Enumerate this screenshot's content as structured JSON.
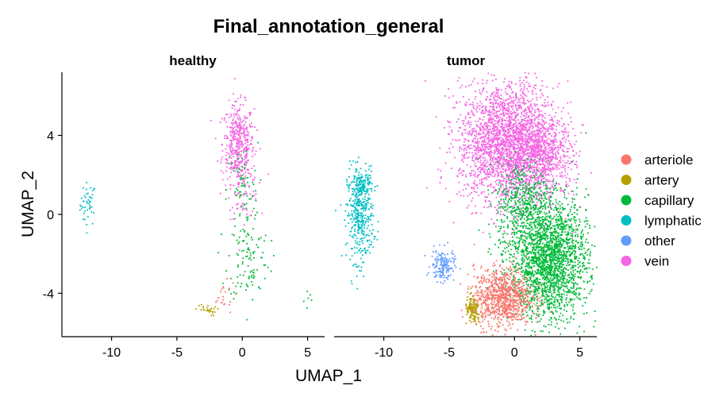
{
  "chart_data": {
    "type": "scatter",
    "title": "Final_annotation_general",
    "xlabel": "UMAP_1",
    "ylabel": "UMAP_2",
    "xlim": [
      -13.8,
      6.3
    ],
    "ylim": [
      -6.2,
      7.2
    ],
    "x_ticks": [
      -10,
      -5,
      0,
      5
    ],
    "y_ticks": [
      4,
      0,
      -4
    ],
    "grid": false,
    "legend_position": "right",
    "colors": {
      "arteriole": "#F8766D",
      "artery": "#B79F00",
      "capillary": "#00BA38",
      "lymphatic": "#00BFC4",
      "other": "#619CFF",
      "vein": "#F564E3"
    },
    "legend": [
      "arteriole",
      "artery",
      "capillary",
      "lymphatic",
      "other",
      "vein"
    ],
    "panels": [
      {
        "name": "healthy",
        "clusters": [
          {
            "label": "lymphatic",
            "cx": -11.8,
            "cy": 0.5,
            "sx": 0.3,
            "sy": 0.55,
            "n": 45
          },
          {
            "label": "vein",
            "cx": -0.3,
            "cy": 3.6,
            "sx": 0.6,
            "sy": 1.0,
            "n": 420
          },
          {
            "label": "vein",
            "cx": 0.1,
            "cy": 1.4,
            "sx": 0.6,
            "sy": 0.8,
            "n": 90
          },
          {
            "label": "capillary",
            "cx": 0.0,
            "cy": 1.2,
            "sx": 0.6,
            "sy": 1.2,
            "n": 70
          },
          {
            "label": "capillary",
            "cx": 0.5,
            "cy": -2.2,
            "sx": 0.8,
            "sy": 1.1,
            "n": 110
          },
          {
            "label": "capillary",
            "cx": 4.8,
            "cy": -4.3,
            "sx": 0.4,
            "sy": 0.4,
            "n": 6
          },
          {
            "label": "arteriole",
            "cx": -1.5,
            "cy": -4.2,
            "sx": 0.5,
            "sy": 0.4,
            "n": 22
          },
          {
            "label": "artery",
            "cx": -2.8,
            "cy": -4.85,
            "sx": 0.4,
            "sy": 0.15,
            "n": 26
          }
        ]
      },
      {
        "name": "tumor",
        "clusters": [
          {
            "label": "lymphatic",
            "cx": -11.8,
            "cy": 0.0,
            "sx": 0.5,
            "sy": 1.2,
            "n": 420
          },
          {
            "label": "lymphatic",
            "cx": -11.6,
            "cy": 1.5,
            "sx": 0.4,
            "sy": 0.3,
            "n": 80
          },
          {
            "label": "other",
            "cx": -5.5,
            "cy": -2.6,
            "sx": 0.45,
            "sy": 0.4,
            "n": 160
          },
          {
            "label": "vein",
            "cx": -0.4,
            "cy": 3.6,
            "sx": 1.9,
            "sy": 1.5,
            "n": 2600
          },
          {
            "label": "vein",
            "cx": 2.2,
            "cy": 2.8,
            "sx": 1.2,
            "sy": 1.0,
            "n": 500
          },
          {
            "label": "capillary",
            "cx": 2.6,
            "cy": -2.3,
            "sx": 1.5,
            "sy": 1.5,
            "n": 2200
          },
          {
            "label": "capillary",
            "cx": 0.6,
            "cy": 0.7,
            "sx": 1.0,
            "sy": 1.0,
            "n": 400
          },
          {
            "label": "arteriole",
            "cx": -0.9,
            "cy": -4.2,
            "sx": 1.1,
            "sy": 0.75,
            "n": 900
          },
          {
            "label": "artery",
            "cx": -3.2,
            "cy": -4.9,
            "sx": 0.3,
            "sy": 0.35,
            "n": 120
          }
        ]
      }
    ]
  }
}
